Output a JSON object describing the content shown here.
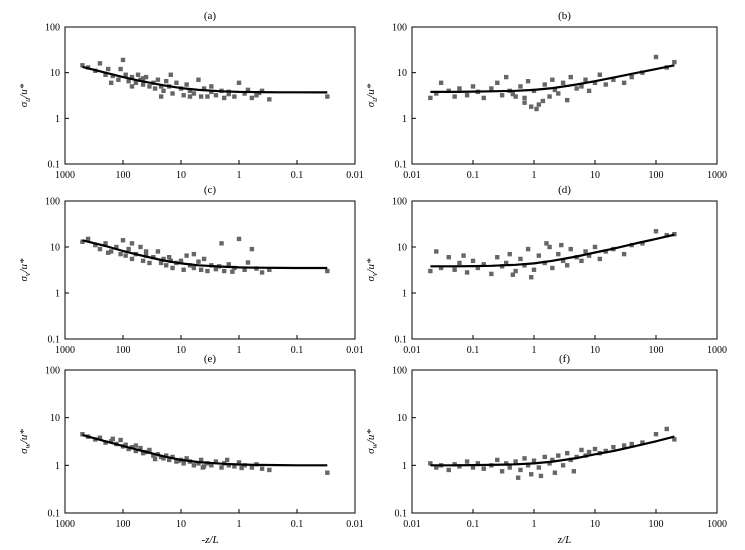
{
  "chart_data": [
    {
      "panel": "(a)",
      "type": "scatter",
      "ylabel": "σu/u*",
      "xlabel": "",
      "x_reversed": true,
      "xlim": [
        1000,
        0.01
      ],
      "ylim": [
        0.1,
        100
      ],
      "x_ticks": [
        "1000",
        "100",
        "10",
        "1",
        "0.1",
        "0.01"
      ],
      "y_ticks": [
        "0.1",
        "1",
        "10",
        "100"
      ],
      "x_scale": "log",
      "y_scale": "log",
      "grid": false,
      "curve": {
        "x": [
          500,
          200,
          100,
          50,
          20,
          10,
          5,
          2,
          1,
          0.5,
          0.2,
          0.1,
          0.03
        ],
        "y": [
          13.4,
          10.0,
          8.0,
          6.6,
          5.3,
          4.6,
          4.2,
          3.9,
          3.8,
          3.75,
          3.72,
          3.71,
          3.7
        ]
      },
      "points": {
        "x": [
          500,
          400,
          300,
          250,
          200,
          180,
          150,
          120,
          100,
          90,
          80,
          70,
          60,
          55,
          50,
          45,
          40,
          35,
          30,
          28,
          25,
          22,
          20,
          18,
          16,
          14,
          12,
          10,
          9,
          8,
          7,
          6,
          5,
          4.5,
          4,
          3.5,
          3,
          2.5,
          2,
          1.8,
          1.5,
          1.2,
          1,
          0.8,
          0.6,
          0.5,
          0.4,
          0.3,
          0.03,
          160,
          110,
          70,
          45,
          22,
          15,
          7,
          3,
          1.5,
          0.7,
          0.45
        ],
        "y": [
          14.5,
          13,
          11,
          16,
          9,
          12,
          8.5,
          7,
          19,
          9,
          6.5,
          8,
          6,
          9,
          7,
          5.5,
          8,
          5,
          6,
          4.5,
          7,
          5,
          4,
          6.5,
          5,
          3.5,
          6,
          4.5,
          3.2,
          5.5,
          4,
          3.5,
          7,
          3,
          4.5,
          3,
          5,
          3.2,
          4,
          2.8,
          3.8,
          3,
          6,
          3.5,
          2.8,
          3.2,
          4,
          2.6,
          3,
          6,
          12,
          5,
          7.5,
          3,
          9,
          3,
          3.8,
          3.4,
          4.2,
          3.6
        ]
      }
    },
    {
      "panel": "(b)",
      "type": "scatter",
      "ylabel": "σu/u*",
      "xlabel": "",
      "x_reversed": false,
      "xlim": [
        0.01,
        1000
      ],
      "ylim": [
        0.1,
        100
      ],
      "x_ticks": [
        "0.01",
        "0.1",
        "1",
        "10",
        "100",
        "1000"
      ],
      "y_ticks": [
        "0.1",
        "1",
        "10",
        "100"
      ],
      "x_scale": "log",
      "y_scale": "log",
      "grid": false,
      "curve": {
        "x": [
          0.02,
          0.05,
          0.1,
          0.2,
          0.5,
          1,
          2,
          5,
          10,
          20,
          50,
          100,
          200
        ],
        "y": [
          3.8,
          3.8,
          3.85,
          3.9,
          4.0,
          4.2,
          4.6,
          5.5,
          6.5,
          7.8,
          10.0,
          12.0,
          14.5
        ]
      },
      "points": {
        "x": [
          0.02,
          0.025,
          0.03,
          0.04,
          0.05,
          0.06,
          0.08,
          0.1,
          0.12,
          0.15,
          0.2,
          0.25,
          0.3,
          0.35,
          0.4,
          0.5,
          0.6,
          0.7,
          0.8,
          1,
          1.2,
          1.5,
          1.8,
          2,
          2.5,
          3,
          3.5,
          4,
          5,
          6,
          7,
          8,
          10,
          12,
          15,
          20,
          30,
          40,
          60,
          100,
          150,
          200,
          0.9,
          1.1,
          1.4,
          0.45,
          0.7,
          2.2
        ],
        "y": [
          2.8,
          3.5,
          6,
          4,
          3,
          4.5,
          3.2,
          5,
          3.8,
          2.8,
          4.5,
          6,
          3.2,
          8,
          4,
          3,
          5,
          2.2,
          6.5,
          4,
          2,
          5.5,
          3,
          7,
          3.5,
          6,
          2.5,
          8,
          4.5,
          5,
          7,
          4,
          6,
          9,
          5.5,
          7,
          6,
          8,
          10,
          22,
          13,
          17,
          1.8,
          1.6,
          2.4,
          3.4,
          2.8,
          4.2
        ]
      }
    },
    {
      "panel": "(c)",
      "type": "scatter",
      "ylabel": "σv/u*",
      "xlabel": "",
      "x_reversed": true,
      "xlim": [
        1000,
        0.01
      ],
      "ylim": [
        0.1,
        100
      ],
      "x_ticks": [
        "1000",
        "100",
        "10",
        "1",
        "0.1",
        "0.01"
      ],
      "y_ticks": [
        "0.1",
        "1",
        "10",
        "100"
      ],
      "x_scale": "log",
      "y_scale": "log",
      "grid": false,
      "curve": {
        "x": [
          500,
          200,
          100,
          50,
          20,
          10,
          5,
          2,
          1,
          0.5,
          0.2,
          0.1,
          0.03
        ],
        "y": [
          14.0,
          10.5,
          8.2,
          6.6,
          5.1,
          4.4,
          4.0,
          3.75,
          3.6,
          3.55,
          3.52,
          3.5,
          3.5
        ]
      },
      "points": {
        "x": [
          500,
          400,
          300,
          250,
          200,
          160,
          130,
          110,
          100,
          90,
          80,
          70,
          60,
          50,
          45,
          40,
          35,
          30,
          25,
          22,
          20,
          18,
          16,
          14,
          12,
          10,
          9,
          8,
          7,
          6,
          5,
          4.5,
          4,
          3.5,
          3,
          2.5,
          2,
          1.8,
          1.5,
          1.2,
          1,
          0.8,
          0.6,
          0.5,
          0.4,
          0.3,
          0.03,
          180,
          70,
          40,
          15,
          6,
          2.2,
          0.7,
          1.3
        ],
        "y": [
          13,
          15,
          11,
          9,
          12,
          8,
          10,
          7,
          14,
          6.5,
          9,
          5.5,
          7,
          10,
          5,
          6.5,
          4.5,
          6,
          8,
          4.5,
          5.5,
          4,
          6,
          3.5,
          4.5,
          5,
          3.2,
          6.5,
          4,
          3.5,
          4.8,
          3.2,
          5.5,
          3,
          4,
          3.3,
          12,
          3,
          4.2,
          3.5,
          15,
          3.2,
          9,
          3.4,
          2.8,
          3.2,
          3,
          7.5,
          12,
          8,
          5,
          7,
          3.8,
          4.6,
          2.9
        ]
      }
    },
    {
      "panel": "(d)",
      "type": "scatter",
      "ylabel": "σv/u*",
      "xlabel": "",
      "x_reversed": false,
      "xlim": [
        0.01,
        1000
      ],
      "ylim": [
        0.1,
        100
      ],
      "x_ticks": [
        "0.01",
        "0.1",
        "1",
        "10",
        "100",
        "1000"
      ],
      "y_ticks": [
        "0.1",
        "1",
        "10",
        "100"
      ],
      "x_scale": "log",
      "y_scale": "log",
      "grid": false,
      "curve": {
        "x": [
          0.02,
          0.05,
          0.1,
          0.2,
          0.5,
          1,
          2,
          5,
          10,
          20,
          50,
          100,
          200
        ],
        "y": [
          3.8,
          3.8,
          3.85,
          3.9,
          4.1,
          4.4,
          5.0,
          6.2,
          7.6,
          9.2,
          12.2,
          15.0,
          18.5
        ]
      },
      "points": {
        "x": [
          0.02,
          0.025,
          0.03,
          0.04,
          0.05,
          0.06,
          0.08,
          0.1,
          0.12,
          0.15,
          0.2,
          0.25,
          0.3,
          0.35,
          0.4,
          0.5,
          0.6,
          0.7,
          0.8,
          1,
          1.2,
          1.5,
          1.8,
          2,
          2.5,
          3,
          3.5,
          4,
          5,
          6,
          7,
          8,
          10,
          12,
          15,
          20,
          30,
          40,
          60,
          100,
          150,
          200,
          0.45,
          0.9,
          1.6,
          2.8,
          0.07
        ],
        "y": [
          3,
          8,
          3.5,
          6,
          3.2,
          4.5,
          2.8,
          5,
          3.5,
          4.2,
          2.6,
          6,
          3.8,
          4.5,
          7,
          3,
          5.5,
          4,
          9,
          3.2,
          6.5,
          4.5,
          10,
          3.5,
          7,
          5,
          4,
          9,
          6,
          5,
          8,
          6.5,
          10,
          5.5,
          8,
          9,
          7,
          11,
          12,
          22,
          18,
          19,
          2.5,
          2.2,
          12,
          11,
          6.5
        ]
      }
    },
    {
      "panel": "(e)",
      "type": "scatter",
      "ylabel": "σw/u*",
      "xlabel": "-z/L",
      "x_reversed": true,
      "xlim": [
        1000,
        0.01
      ],
      "ylim": [
        0.1,
        100
      ],
      "x_ticks": [
        "1000",
        "100",
        "10",
        "1",
        "0.1",
        "0.01"
      ],
      "y_ticks": [
        "0.1",
        "1",
        "10",
        "100"
      ],
      "x_scale": "log",
      "y_scale": "log",
      "grid": false,
      "curve": {
        "x": [
          500,
          200,
          100,
          50,
          20,
          10,
          5,
          2,
          1,
          0.5,
          0.2,
          0.1,
          0.03
        ],
        "y": [
          4.3,
          3.2,
          2.55,
          2.05,
          1.55,
          1.3,
          1.17,
          1.08,
          1.04,
          1.02,
          1.01,
          1.0,
          1.0
        ]
      },
      "points": {
        "x": [
          500,
          400,
          300,
          250,
          200,
          160,
          130,
          110,
          100,
          90,
          80,
          70,
          60,
          50,
          45,
          40,
          35,
          30,
          25,
          22,
          20,
          18,
          16,
          14,
          12,
          10,
          9,
          8,
          7,
          6,
          5,
          4.5,
          4,
          3.5,
          3,
          2.5,
          2,
          1.8,
          1.5,
          1.2,
          1,
          0.8,
          0.6,
          0.5,
          0.4,
          0.3,
          0.03,
          150,
          60,
          28,
          11,
          4.2,
          1.6,
          0.9
        ],
        "y": [
          4.5,
          4.0,
          3.5,
          3.8,
          3.0,
          3.2,
          2.8,
          3.4,
          2.5,
          2.7,
          2.2,
          2.4,
          2.0,
          2.3,
          1.8,
          1.9,
          2.1,
          1.6,
          1.7,
          1.5,
          1.4,
          1.6,
          1.3,
          1.5,
          1.2,
          1.3,
          1.1,
          1.4,
          1.2,
          1.0,
          1.1,
          1.3,
          0.95,
          1.1,
          1.0,
          1.2,
          0.9,
          1.1,
          1.0,
          0.95,
          1.15,
          1.0,
          0.9,
          1.05,
          0.85,
          0.8,
          0.7,
          3.6,
          2.6,
          1.35,
          1.25,
          0.9,
          1.3,
          0.88
        ]
      }
    },
    {
      "panel": "(f)",
      "type": "scatter",
      "ylabel": "σw/u*",
      "xlabel": "z/L",
      "x_reversed": false,
      "xlim": [
        0.01,
        1000
      ],
      "ylim": [
        0.1,
        100
      ],
      "x_ticks": [
        "0.01",
        "0.1",
        "1",
        "10",
        "100",
        "1000"
      ],
      "y_ticks": [
        "0.1",
        "1",
        "10",
        "100"
      ],
      "x_scale": "log",
      "y_scale": "log",
      "grid": false,
      "curve": {
        "x": [
          0.02,
          0.05,
          0.1,
          0.2,
          0.5,
          1,
          2,
          5,
          10,
          20,
          50,
          100,
          200
        ],
        "y": [
          1.0,
          1.0,
          1.01,
          1.02,
          1.05,
          1.1,
          1.2,
          1.42,
          1.7,
          2.0,
          2.6,
          3.2,
          4.0
        ]
      },
      "points": {
        "x": [
          0.02,
          0.025,
          0.03,
          0.04,
          0.05,
          0.06,
          0.08,
          0.1,
          0.12,
          0.15,
          0.2,
          0.25,
          0.3,
          0.35,
          0.4,
          0.5,
          0.6,
          0.7,
          0.8,
          1,
          1.2,
          1.5,
          1.8,
          2,
          2.5,
          3,
          3.5,
          4,
          5,
          6,
          7,
          8,
          10,
          12,
          15,
          20,
          30,
          40,
          60,
          100,
          150,
          200,
          0.9,
          1.3,
          2.2,
          4.5,
          0.55
        ],
        "y": [
          1.1,
          0.9,
          1.0,
          0.8,
          1.05,
          0.95,
          1.2,
          0.9,
          1.1,
          0.85,
          1.0,
          1.3,
          0.75,
          1.1,
          0.9,
          1.2,
          0.8,
          1.4,
          1.0,
          1.25,
          0.9,
          1.5,
          1.1,
          1.3,
          1.6,
          1.0,
          1.8,
          1.3,
          1.5,
          2.1,
          1.6,
          1.9,
          2.2,
          1.8,
          2.0,
          2.4,
          2.6,
          2.8,
          3.0,
          4.5,
          5.8,
          3.5,
          0.65,
          0.6,
          0.7,
          0.75,
          0.55
        ]
      }
    }
  ]
}
